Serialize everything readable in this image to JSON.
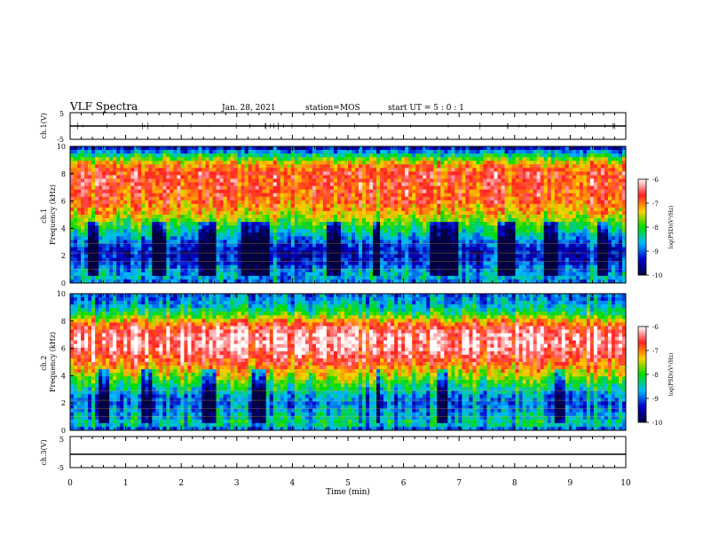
{
  "header": {
    "title": "VLF Spectra",
    "date": "Jan. 28, 2021",
    "station": "station=MOS",
    "start": "start UT =  5 : 0 : 1"
  },
  "colorbar": {
    "label": "log(PSD)(V²/Hz)",
    "ticks": [
      "-6",
      "-7",
      "-8",
      "-9",
      "-10"
    ],
    "colors": [
      "#ffffff",
      "#ff2020",
      "#ffd000",
      "#00dd00",
      "#00bbff",
      "#0000cc",
      "#000040"
    ]
  },
  "chart_data": [
    {
      "type": "line",
      "name": "ch1-waveform",
      "ylabel": "ch.1(V)",
      "ylim": [
        -5,
        5
      ],
      "yticks": [
        "5",
        "-5"
      ],
      "level": 0
    },
    {
      "type": "heatmap",
      "name": "ch1-spectrogram",
      "ylabel": "ch.1\nFrequency (kHz)",
      "ylim": [
        0,
        10
      ],
      "yticks": [
        "0",
        "2",
        "4",
        "6",
        "8",
        "10"
      ],
      "xlim": [
        0,
        10
      ],
      "zlim": [
        -10,
        -6
      ],
      "profile_khz": [
        0,
        0.5,
        1,
        1.5,
        2,
        2.5,
        3,
        3.5,
        4,
        5,
        6,
        7,
        8,
        8.5,
        9,
        9.5,
        10
      ],
      "profile_log_psd": [
        -9.0,
        -8.6,
        -8.8,
        -9.2,
        -9.4,
        -9.3,
        -9.0,
        -8.6,
        -8.2,
        -7.4,
        -6.9,
        -6.8,
        -6.7,
        -7.0,
        -7.6,
        -8.6,
        -9.6
      ],
      "quiet_bands_min": [
        [
          0.3,
          0.5
        ],
        [
          1.5,
          1.7
        ],
        [
          2.3,
          2.6
        ],
        [
          3.1,
          3.6
        ],
        [
          4.6,
          4.9
        ],
        [
          5.45,
          5.55
        ],
        [
          6.5,
          7.0
        ],
        [
          7.7,
          8.0
        ],
        [
          8.5,
          8.8
        ],
        [
          9.5,
          9.7
        ]
      ]
    },
    {
      "type": "heatmap",
      "name": "ch2-spectrogram",
      "ylabel": "ch.2\nFrequency (kHz)",
      "ylim": [
        0,
        10
      ],
      "yticks": [
        "0",
        "2",
        "4",
        "6",
        "8",
        "10"
      ],
      "xlim": [
        0,
        10
      ],
      "zlim": [
        -10,
        -6
      ],
      "profile_khz": [
        0,
        0.5,
        1,
        1.5,
        2,
        2.5,
        3,
        4,
        5,
        6,
        7,
        7.5,
        8,
        8.5,
        9,
        9.5,
        10
      ],
      "profile_log_psd": [
        -9.2,
        -8.3,
        -8.6,
        -8.8,
        -9.0,
        -8.8,
        -8.4,
        -7.6,
        -6.8,
        -6.3,
        -6.3,
        -6.6,
        -7.2,
        -8.0,
        -8.5,
        -8.8,
        -9.0
      ],
      "quiet_bands_min": [
        [
          0.5,
          0.7
        ],
        [
          1.3,
          1.5
        ],
        [
          2.4,
          2.6
        ],
        [
          3.3,
          3.5
        ],
        [
          5.5,
          5.6
        ],
        [
          6.6,
          6.8
        ],
        [
          8.7,
          8.9
        ]
      ]
    },
    {
      "type": "line",
      "name": "ch3-waveform",
      "ylabel": "ch.3(V)",
      "ylim": [
        -5,
        5
      ],
      "yticks": [
        "5",
        "-5"
      ],
      "level": 0
    }
  ],
  "xaxis": {
    "label": "Time (min)",
    "ticks": [
      "0",
      "1",
      "2",
      "3",
      "4",
      "5",
      "6",
      "7",
      "8",
      "9",
      "10"
    ],
    "xlim": [
      0,
      10
    ]
  }
}
